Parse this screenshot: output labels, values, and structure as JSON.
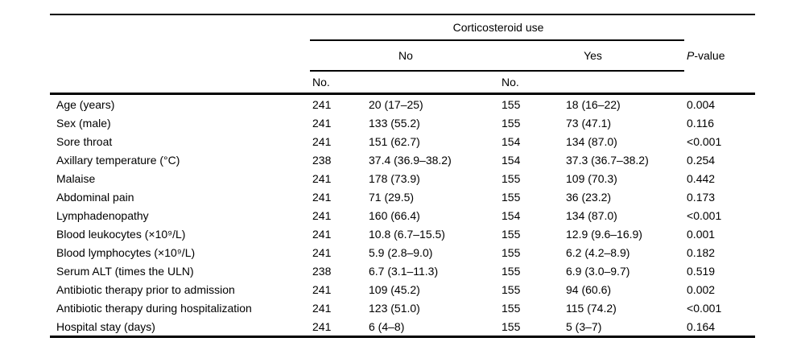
{
  "table": {
    "group_header": "Corticosteroid use",
    "col_no": "No",
    "col_yes": "Yes",
    "p_letter": "P",
    "p_suffix": "-value",
    "subcol_n_no": "No.",
    "subcol_n_yes": "No.",
    "rows": [
      {
        "label": "Age (years)",
        "no_n": "241",
        "no_val": "20 (17–25)",
        "yes_n": "155",
        "yes_val": "18 (16–22)",
        "p": "0.004"
      },
      {
        "label": "Sex (male)",
        "no_n": "241",
        "no_val": "133 (55.2)",
        "yes_n": "155",
        "yes_val": "73 (47.1)",
        "p": "0.116"
      },
      {
        "label": "Sore throat",
        "no_n": "241",
        "no_val": "151 (62.7)",
        "yes_n": "154",
        "yes_val": "134 (87.0)",
        "p": "<0.001"
      },
      {
        "label": "Axillary temperature (°C)",
        "no_n": "238",
        "no_val": "37.4 (36.9–38.2)",
        "yes_n": "154",
        "yes_val": "37.3 (36.7–38.2)",
        "p": "0.254"
      },
      {
        "label": "Malaise",
        "no_n": "241",
        "no_val": "178 (73.9)",
        "yes_n": "155",
        "yes_val": "109 (70.3)",
        "p": "0.442"
      },
      {
        "label": "Abdominal pain",
        "no_n": "241",
        "no_val": "71 (29.5)",
        "yes_n": "155",
        "yes_val": "36 (23.2)",
        "p": "0.173"
      },
      {
        "label": "Lymphadenopathy",
        "no_n": "241",
        "no_val": "160 (66.4)",
        "yes_n": "154",
        "yes_val": "134 (87.0)",
        "p": "<0.001"
      },
      {
        "label": "Blood leukocytes (×10⁹/L)",
        "no_n": "241",
        "no_val": "10.8 (6.7–15.5)",
        "yes_n": "155",
        "yes_val": "12.9 (9.6–16.9)",
        "p": "0.001"
      },
      {
        "label": "Blood lymphocytes (×10⁹/L)",
        "no_n": "241",
        "no_val": "5.9 (2.8–9.0)",
        "yes_n": "155",
        "yes_val": "6.2 (4.2–8.9)",
        "p": "0.182"
      },
      {
        "label": "Serum ALT (times the ULN)",
        "no_n": "238",
        "no_val": "6.7 (3.1–11.3)",
        "yes_n": "155",
        "yes_val": "6.9 (3.0–9.7)",
        "p": "0.519"
      },
      {
        "label": "Antibiotic therapy prior to admission",
        "no_n": "241",
        "no_val": "109 (45.2)",
        "yes_n": "155",
        "yes_val": "94 (60.6)",
        "p": "0.002"
      },
      {
        "label": "Antibiotic therapy during hospitalization",
        "no_n": "241",
        "no_val": "123 (51.0)",
        "yes_n": "155",
        "yes_val": "115 (74.2)",
        "p": "<0.001"
      },
      {
        "label": "Hospital stay (days)",
        "no_n": "241",
        "no_val": "6 (4–8)",
        "yes_n": "155",
        "yes_val": "5 (3–7)",
        "p": "0.164"
      }
    ]
  }
}
